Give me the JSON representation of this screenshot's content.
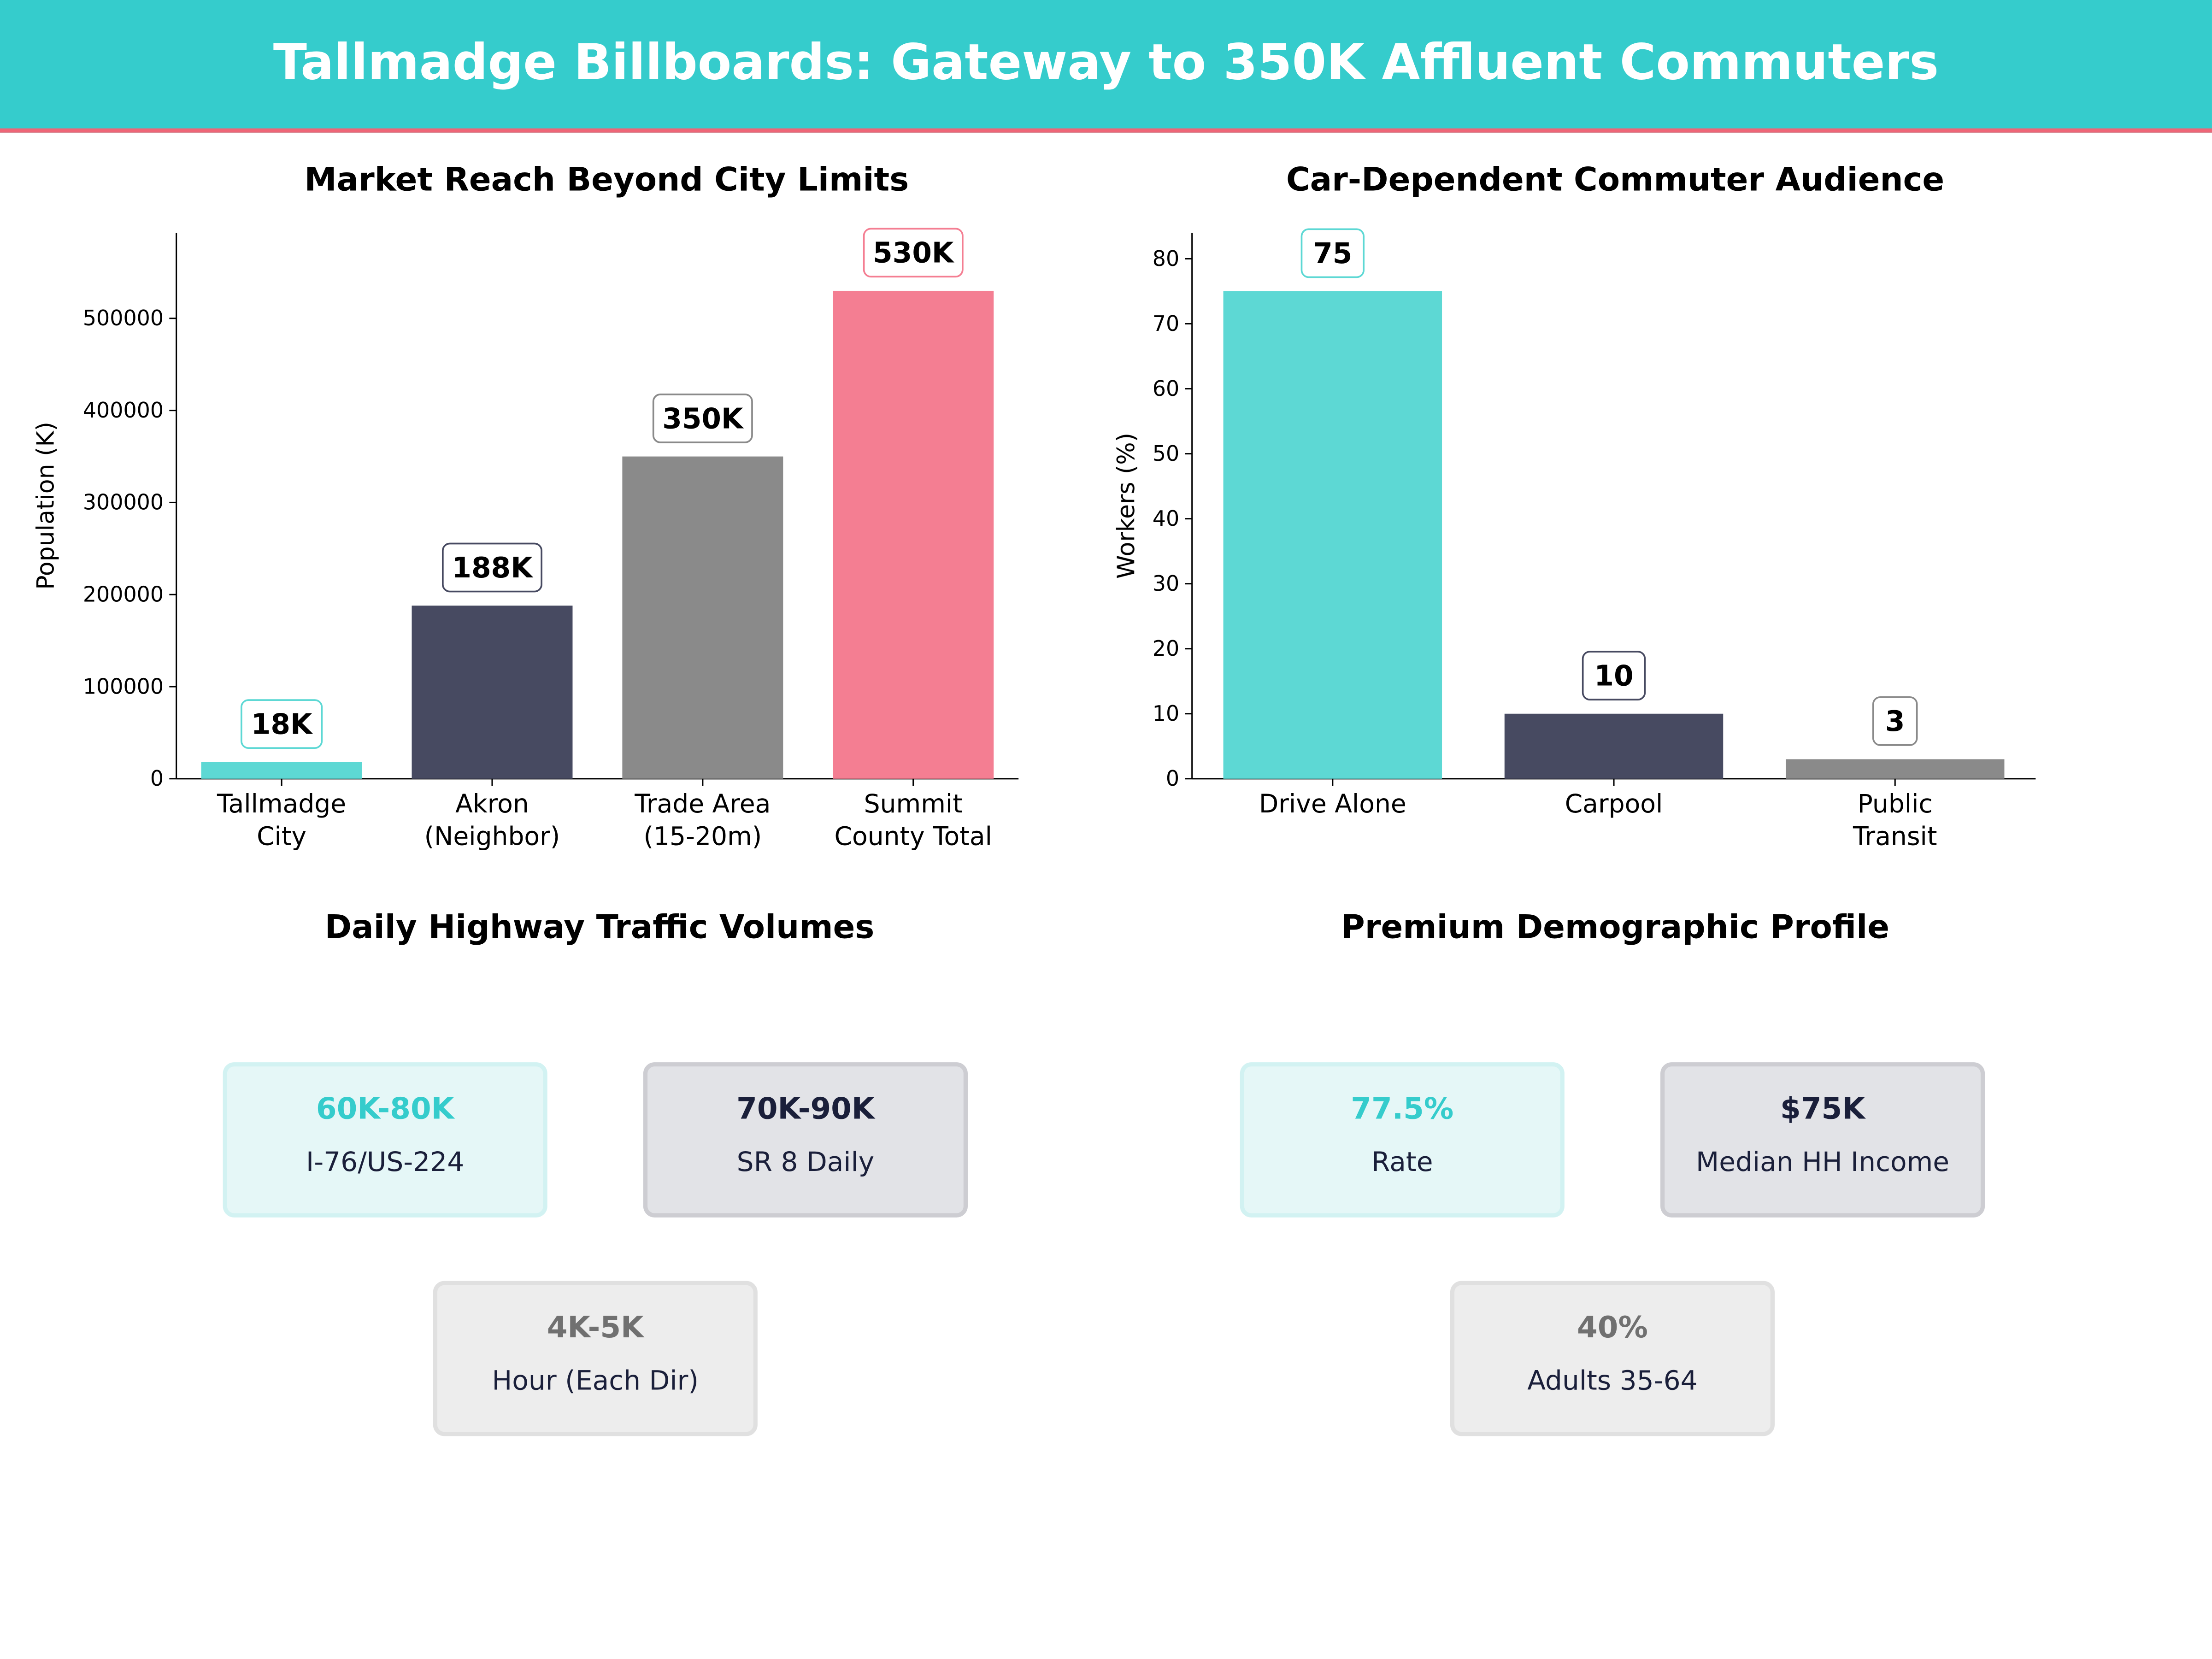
{
  "title": "Tallmadge Billboards: Gateway to 350K Affluent Commuters",
  "colors": {
    "header": "#35CCCC",
    "accent_line": "#EE6677",
    "teal": "#5DD8D4",
    "navy": "#474A61",
    "gray": "#8A8A8A",
    "pink": "#F47E92"
  },
  "chart_data": [
    {
      "type": "bar",
      "title": "Market Reach Beyond City Limits",
      "xlabel": "",
      "ylabel": "Population (K)",
      "categories": [
        "Tallmadge\nCity",
        "Akron\n(Neighbor)",
        "Trade Area\n(15-20m)",
        "Summit\nCounty Total"
      ],
      "values": [
        18000,
        188000,
        350000,
        530000
      ],
      "data_labels": [
        "18K",
        "188K",
        "350K",
        "530K"
      ],
      "bar_colors": [
        "#5DD8D4",
        "#474A61",
        "#8A8A8A",
        "#F47E92"
      ],
      "label_border_colors": [
        "#5DD8D4",
        "#474A61",
        "#8A8A8A",
        "#F47E92"
      ],
      "yticks": [
        0,
        100000,
        200000,
        300000,
        400000,
        500000
      ],
      "ylim": [
        0,
        593000
      ],
      "grid": false
    },
    {
      "type": "bar",
      "title": "Car-Dependent Commuter Audience",
      "xlabel": "",
      "ylabel": "Workers (%)",
      "categories": [
        "Drive Alone",
        "Carpool",
        "Public\nTransit"
      ],
      "values": [
        75,
        10,
        3
      ],
      "data_labels": [
        "75",
        "10",
        "3"
      ],
      "bar_colors": [
        "#5DD8D4",
        "#474A61",
        "#8A8A8A"
      ],
      "label_border_colors": [
        "#5DD8D4",
        "#474A61",
        "#8A8A8A"
      ],
      "yticks": [
        0,
        10,
        20,
        30,
        40,
        50,
        60,
        70,
        80
      ],
      "ylim": [
        0,
        84
      ],
      "grid": false
    }
  ],
  "traffic": {
    "title": "Daily Highway Traffic Volumes",
    "cards": [
      {
        "value": "60K-80K",
        "label": "I-76/US-224"
      },
      {
        "value": "70K-90K",
        "label": "SR 8 Daily"
      },
      {
        "value": "4K-5K",
        "label": "Hour (Each Dir)"
      }
    ]
  },
  "demographics": {
    "title": "Premium Demographic Profile",
    "cards": [
      {
        "value": "77.5%",
        "label": "Rate"
      },
      {
        "value": "$75K",
        "label": "Median HH Income"
      },
      {
        "value": "40%",
        "label": "Adults 35-64"
      }
    ]
  }
}
